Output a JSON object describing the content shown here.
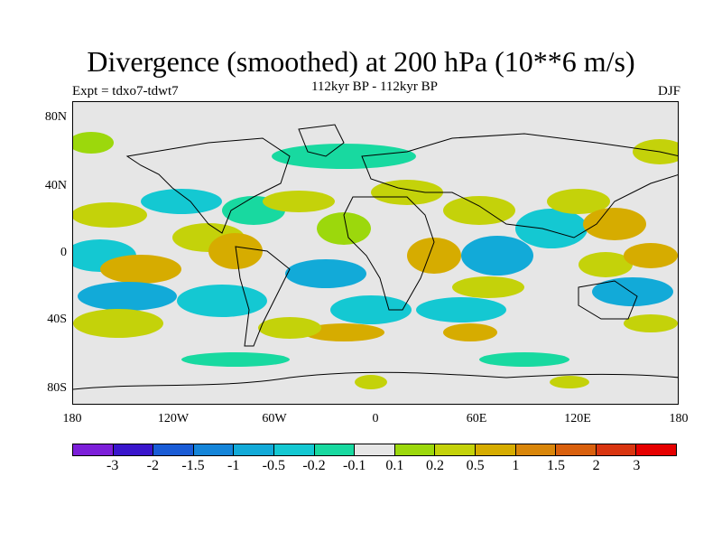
{
  "header": {
    "title": "Divergence (smoothed) at 200 hPa (10**6 m/s)",
    "subtitle": "112kyr BP - 112kyr BP",
    "expt": "Expt = tdxo7-tdwt7",
    "season": "DJF"
  },
  "axes": {
    "lat_labels": [
      "80N",
      "40N",
      "0",
      "40S",
      "80S"
    ],
    "lon_labels": [
      "180",
      "120W",
      "60W",
      "0",
      "60E",
      "120E",
      "180"
    ]
  },
  "colorbar": {
    "colors": [
      "#7c1fd9",
      "#3a16cc",
      "#1a5cd6",
      "#1585d9",
      "#12aad8",
      "#14c8d2",
      "#18d9a0",
      "#e6e6e6",
      "#9cd80c",
      "#c4d20a",
      "#d6ac00",
      "#d9860a",
      "#d9600d",
      "#d93510",
      "#e60000"
    ],
    "labels": [
      "-3",
      "-2",
      "-1.5",
      "-1",
      "-0.5",
      "-0.2",
      "-0.1",
      "0.1",
      "0.2",
      "0.5",
      "1",
      "1.5",
      "2",
      "3"
    ]
  },
  "map": {
    "background": "#e6e6e6",
    "field_colors": {
      "negative_weak": "#18d9a0",
      "negative_mid": "#14c8d2",
      "negative_strong": "#12aad8",
      "positive_weak": "#9cd80c",
      "positive_mid": "#c4d20a",
      "positive_strong": "#d6ac00",
      "positive_peak": "#d9860a"
    }
  }
}
